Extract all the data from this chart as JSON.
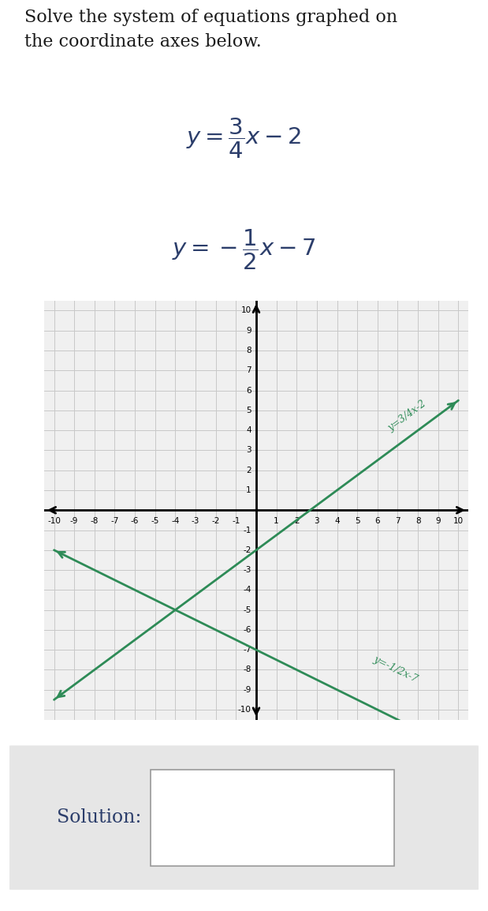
{
  "title_text": "Solve the system of equations graphed on\nthe coordinate axes below.",
  "eq1_slope": 0.75,
  "eq1_intercept": -2,
  "eq2_slope": -0.5,
  "eq2_intercept": -7,
  "line_color": "#2e8b57",
  "line_width": 2.0,
  "xlim": [
    -10.5,
    10.5
  ],
  "ylim": [
    -10.5,
    10.5
  ],
  "grid_color": "#c8c8c8",
  "axis_color": "#000000",
  "bg_color": "#ffffff",
  "plot_bg_color": "#f0f0f0",
  "solution_box_color": "#e6e6e6",
  "text_color": "#2c3e6b",
  "eq1_graph_label": "y=3/4x-2",
  "eq2_graph_label": "y=-1/2x-7",
  "solution_label": "Solution:"
}
